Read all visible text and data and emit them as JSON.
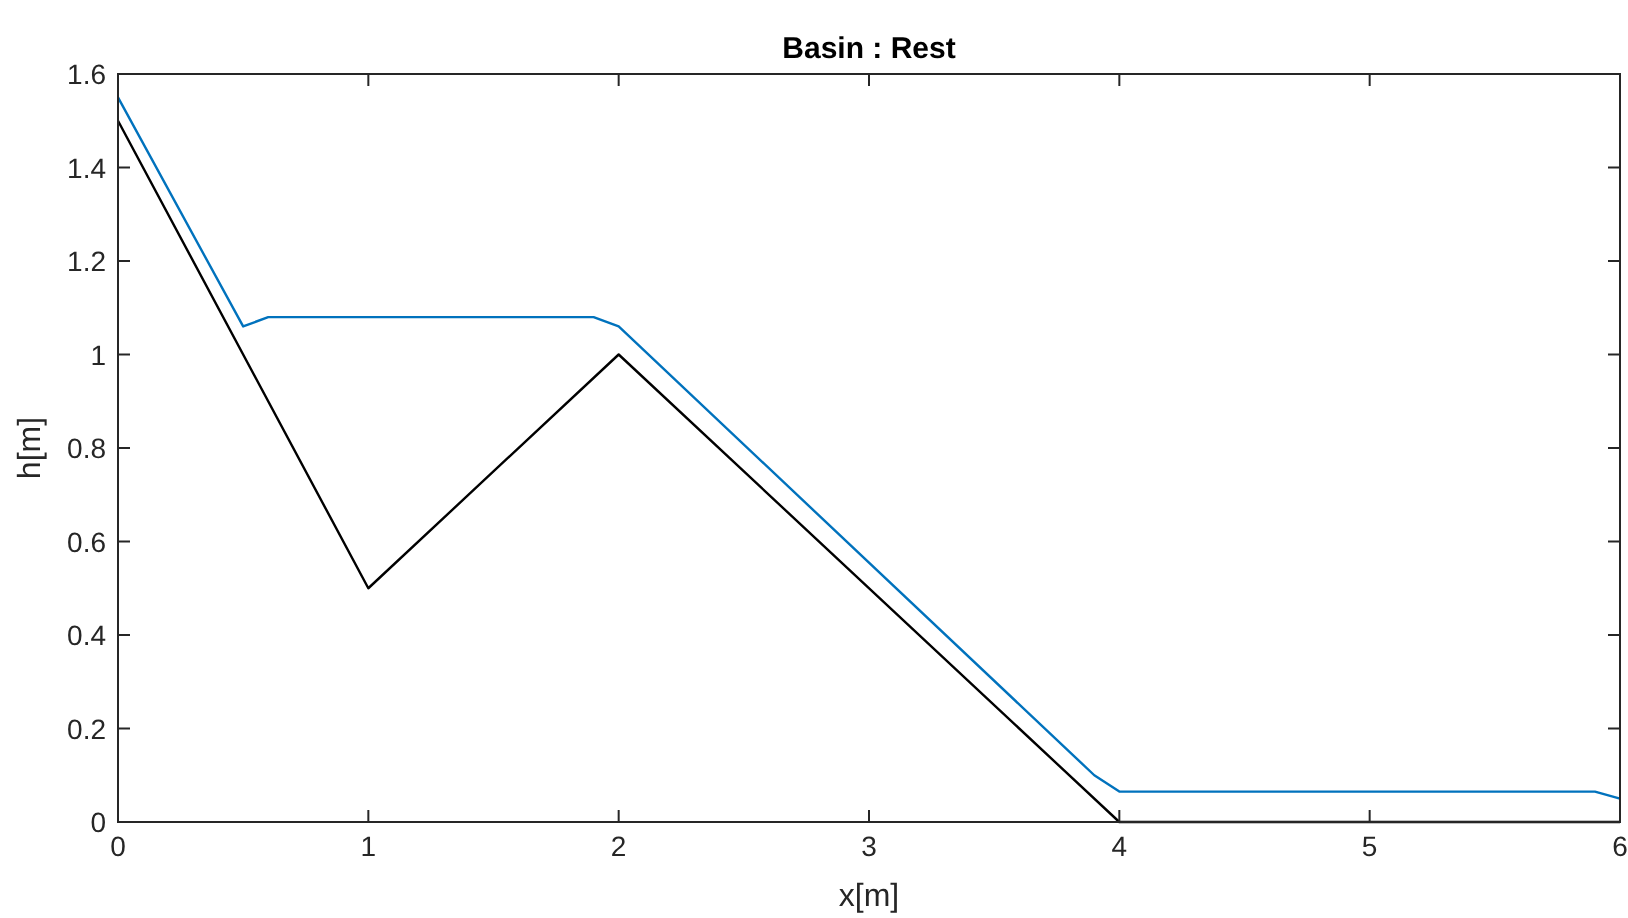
{
  "chart_data": {
    "type": "line",
    "title": "Basin : Rest",
    "xlabel": "x[m]",
    "ylabel": "h[m]",
    "xlim": [
      0,
      6
    ],
    "ylim": [
      0,
      1.6
    ],
    "xticks": [
      0,
      1,
      2,
      3,
      4,
      5,
      6
    ],
    "yticks": [
      0,
      0.2,
      0.4,
      0.6,
      0.8,
      1,
      1.2,
      1.4,
      1.6
    ],
    "grid": false,
    "marker": "none",
    "line_style": "solid",
    "series": [
      {
        "color": "#000000",
        "x": [
          0,
          1,
          2,
          4,
          6
        ],
        "values": [
          1.5,
          0.5,
          1,
          0,
          0
        ]
      },
      {
        "color": "#0072bd",
        "x": [
          0,
          0.5,
          0.6,
          1.9,
          2,
          3.9,
          4,
          5.9,
          6
        ],
        "values": [
          1.55,
          1.06,
          1.08,
          1.08,
          1.06,
          0.1,
          0.065,
          0.065,
          0.05
        ]
      }
    ]
  }
}
